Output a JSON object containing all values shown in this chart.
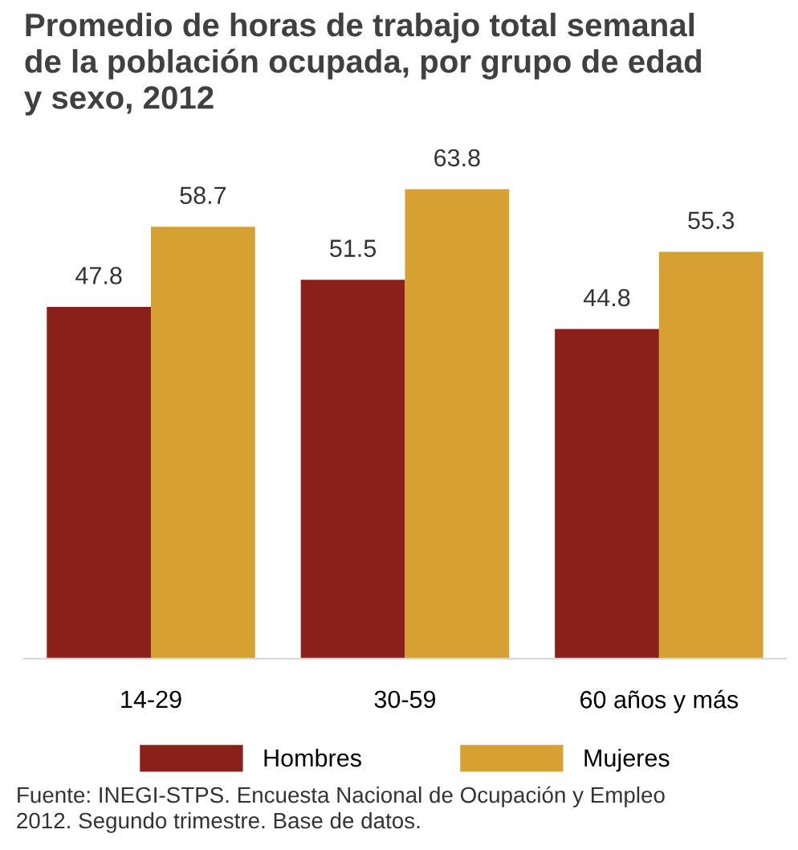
{
  "chart_data": {
    "type": "bar",
    "title": "Promedio de horas de trabajo total semanal\nde la población ocupada, por grupo de edad\ny sexo, 2012",
    "categories": [
      "14-29",
      "30-59",
      "60 años y más"
    ],
    "series": [
      {
        "name": "Hombres",
        "color": "#8b1f1a",
        "values": [
          47.8,
          51.5,
          44.8
        ]
      },
      {
        "name": "Mujeres",
        "color": "#d6a033",
        "values": [
          58.7,
          63.8,
          55.3
        ]
      }
    ],
    "tick_labels": "x",
    "data_labels": true,
    "grid": false,
    "legend": "bottom",
    "annotations": [
      "Fuente: INEGI-STPS. Encuesta Nacional de Ocupación y Empleo\n2012. Segundo trimestre. Base de datos."
    ]
  }
}
